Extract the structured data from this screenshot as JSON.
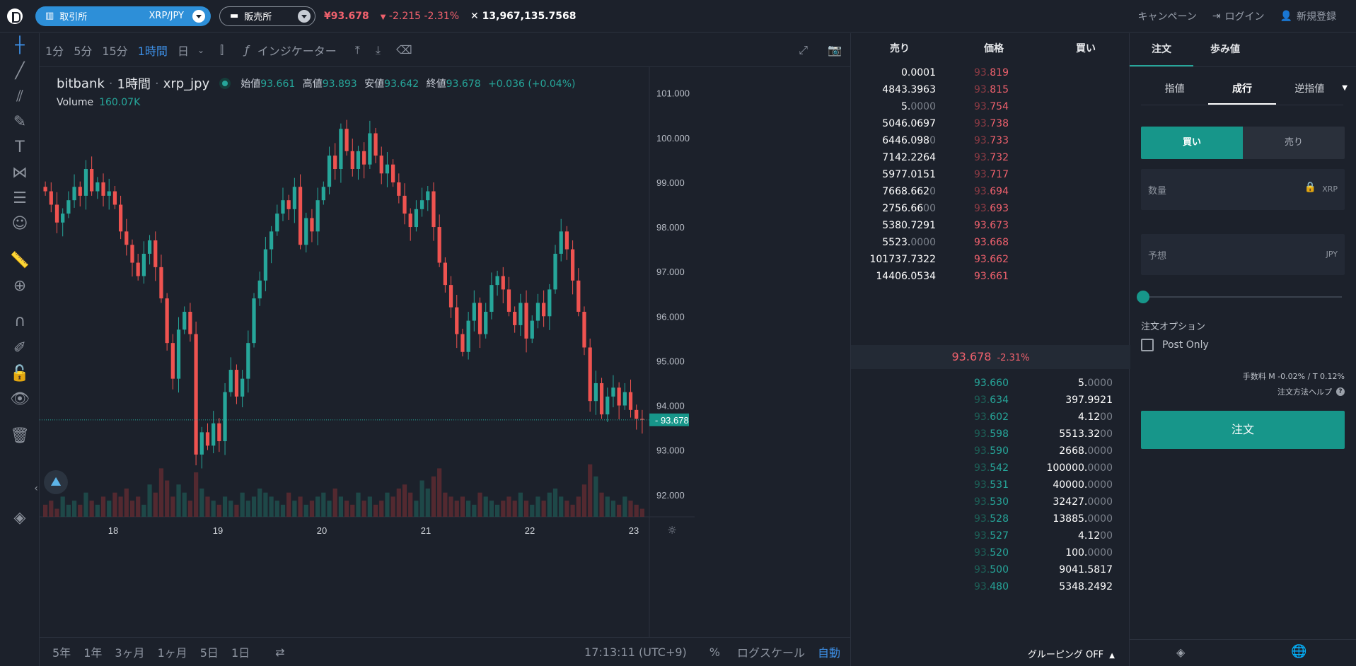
{
  "topbar": {
    "market_label": "取引所",
    "pair": "XRP/JPY",
    "exchange_label": "販売所",
    "price": "¥93.678",
    "change": "-2.215 -2.31%",
    "volume": "13,967,135.7568",
    "campaign": "キャンペーン",
    "login": "ログイン",
    "signup": "新規登録"
  },
  "chart_toolbar": {
    "timeframes": [
      "1分",
      "5分",
      "15分",
      "1時間",
      "日"
    ],
    "active_timeframe": "1時間",
    "indicators": "インジケーター"
  },
  "legend": {
    "source": "bitbank",
    "interval": "1時間",
    "symbol": "xrp_jpy",
    "open_label": "始値",
    "open": "93.661",
    "high_label": "高値",
    "high": "93.893",
    "low_label": "安値",
    "low": "93.642",
    "close_label": "終値",
    "close": "93.678",
    "change": "+0.036 (+0.04%)",
    "volume_label": "Volume",
    "volume": "160.07K"
  },
  "chart_bottom": {
    "ranges": [
      "5年",
      "1年",
      "3ヶ月",
      "1ヶ月",
      "5日",
      "1日"
    ],
    "time": "17:13:11 (UTC+9)",
    "percent": "%",
    "log": "ログスケール",
    "auto": "自動"
  },
  "chart_data": {
    "type": "candlestick",
    "ylabels": [
      "101.000",
      "100.000",
      "99.000",
      "98.000",
      "97.000",
      "96.000",
      "95.000",
      "94.000",
      "93.000",
      "92.000"
    ],
    "xlabels": [
      "18",
      "19",
      "20",
      "21",
      "22",
      "23"
    ],
    "last_price_label": "93.678",
    "colors": {
      "up": "#26a69a",
      "down": "#ef5350"
    },
    "closes": [
      98.8,
      98.5,
      98.1,
      98.3,
      98.6,
      98.9,
      98.7,
      99.3,
      98.8,
      99.0,
      98.7,
      98.8,
      98.5,
      97.9,
      97.6,
      97.2,
      96.9,
      97.4,
      97.7,
      97.1,
      96.4,
      95.4,
      94.6,
      95.7,
      96.1,
      95.6,
      92.9,
      93.4,
      93.1,
      93.6,
      93.2,
      94.3,
      94.8,
      94.2,
      94.6,
      95.4,
      96.4,
      96.8,
      97.5,
      97.9,
      98.3,
      98.6,
      98.4,
      98.9,
      97.6,
      98.2,
      97.9,
      98.6,
      98.9,
      99.6,
      99.3,
      100.2,
      99.7,
      99.3,
      99.7,
      99.4,
      100.1,
      99.6,
      99.2,
      99.4,
      99.0,
      98.7,
      98.3,
      98.0,
      98.4,
      98.6,
      98.8,
      98.0,
      97.2,
      96.7,
      96.2,
      95.6,
      95.2,
      95.9,
      96.3,
      95.6,
      96.1,
      96.7,
      96.9,
      96.6,
      96.1,
      95.8,
      96.3,
      95.5,
      95.9,
      96.3,
      96.0,
      96.6,
      97.4,
      97.9,
      97.5,
      96.8,
      96.1,
      95.3,
      94.1,
      94.5,
      93.8,
      94.2,
      94.4,
      94.0,
      94.3,
      93.9,
      93.7,
      93.68
    ],
    "volumes": [
      3,
      4,
      2,
      5,
      3,
      4,
      3,
      6,
      4,
      3,
      5,
      4,
      6,
      5,
      7,
      4,
      5,
      3,
      8,
      6,
      12,
      9,
      5,
      8,
      6,
      4,
      11,
      7,
      5,
      4,
      3,
      5,
      4,
      3,
      6,
      4,
      5,
      7,
      6,
      5,
      4,
      3,
      6,
      4,
      5,
      3,
      4,
      5,
      6,
      4,
      7,
      5,
      4,
      3,
      6,
      4,
      5,
      3,
      4,
      6,
      5,
      7,
      8,
      6,
      4,
      9,
      7,
      10,
      12,
      6,
      5,
      4,
      5,
      4,
      3,
      6,
      5,
      4,
      3,
      4,
      5,
      4,
      6,
      4,
      3,
      5,
      4,
      6,
      7,
      5,
      4,
      3,
      5,
      8,
      13,
      10,
      6,
      5,
      4,
      3,
      5,
      4,
      3,
      2
    ]
  },
  "orderbook": {
    "headers": {
      "sell": "売り",
      "price": "価格",
      "buy": "買い"
    },
    "asks": [
      {
        "amt": "0.0001",
        "amt_dim": "",
        "px": "93.819",
        "px_dim": "93."
      },
      {
        "amt": "4843.3963",
        "amt_dim": "",
        "px": "93.815",
        "px_dim": "93."
      },
      {
        "amt": "5.",
        "amt_dim": "0000",
        "px": "93.754",
        "px_dim": "93."
      },
      {
        "amt": "5046.0697",
        "amt_dim": "",
        "px": "93.738",
        "px_dim": "93."
      },
      {
        "amt": "6446.098",
        "amt_dim": "0",
        "px": "93.733",
        "px_dim": "93."
      },
      {
        "amt": "7142.2264",
        "amt_dim": "",
        "px": "93.732",
        "px_dim": "93."
      },
      {
        "amt": "5977.0151",
        "amt_dim": "",
        "px": "93.717",
        "px_dim": "93."
      },
      {
        "amt": "7668.662",
        "amt_dim": "0",
        "px": "93.694",
        "px_dim": "93."
      },
      {
        "amt": "2756.66",
        "amt_dim": "00",
        "px": "93.693",
        "px_dim": "93."
      },
      {
        "amt": "5380.7291",
        "amt_dim": "",
        "px": "93.673",
        "px_dim": ""
      },
      {
        "amt": "5523.",
        "amt_dim": "0000",
        "px": "93.668",
        "px_dim": ""
      },
      {
        "amt": "101737.7322",
        "amt_dim": "",
        "px": "93.662",
        "px_dim": ""
      },
      {
        "amt": "14406.0534",
        "amt_dim": "",
        "px": "93.661",
        "px_dim": ""
      }
    ],
    "mid_price": "93.678",
    "mid_change": "-2.31%",
    "bids": [
      {
        "px": "93.660",
        "px_dim": "",
        "amt": "5.",
        "amt_dim": "0000"
      },
      {
        "px": "93.634",
        "px_dim": "93.",
        "amt": "397.9921",
        "amt_dim": ""
      },
      {
        "px": "93.602",
        "px_dim": "93.",
        "amt": "4.12",
        "amt_dim": "00"
      },
      {
        "px": "93.598",
        "px_dim": "93.",
        "amt": "5513.32",
        "amt_dim": "00"
      },
      {
        "px": "93.590",
        "px_dim": "93.",
        "amt": "2668.",
        "amt_dim": "0000"
      },
      {
        "px": "93.542",
        "px_dim": "93.",
        "amt": "100000.",
        "amt_dim": "0000"
      },
      {
        "px": "93.531",
        "px_dim": "93.",
        "amt": "40000.",
        "amt_dim": "0000"
      },
      {
        "px": "93.530",
        "px_dim": "93.",
        "amt": "32427.",
        "amt_dim": "0000"
      },
      {
        "px": "93.528",
        "px_dim": "93.",
        "amt": "13885.",
        "amt_dim": "0000"
      },
      {
        "px": "93.527",
        "px_dim": "93.",
        "amt": "4.12",
        "amt_dim": "00"
      },
      {
        "px": "93.520",
        "px_dim": "93.",
        "amt": "100.",
        "amt_dim": "0000"
      },
      {
        "px": "93.500",
        "px_dim": "93.",
        "amt": "9041.5817",
        "amt_dim": ""
      },
      {
        "px": "93.480",
        "px_dim": "93.",
        "amt": "5348.2492",
        "amt_dim": ""
      }
    ],
    "grouping": "グルーピング OFF"
  },
  "order_panel": {
    "tabs": [
      "注文",
      "歩み値"
    ],
    "subtabs": [
      "指値",
      "成行",
      "逆指値"
    ],
    "buy": "買い",
    "sell": "売り",
    "qty_label": "数量",
    "qty_unit": "XRP",
    "est_label": "予想",
    "est_unit": "JPY",
    "options_title": "注文オプション",
    "post_only": "Post Only",
    "fee": "手数料 M -0.02% / T 0.12%",
    "help": "注文方法ヘルプ",
    "submit": "注文"
  }
}
